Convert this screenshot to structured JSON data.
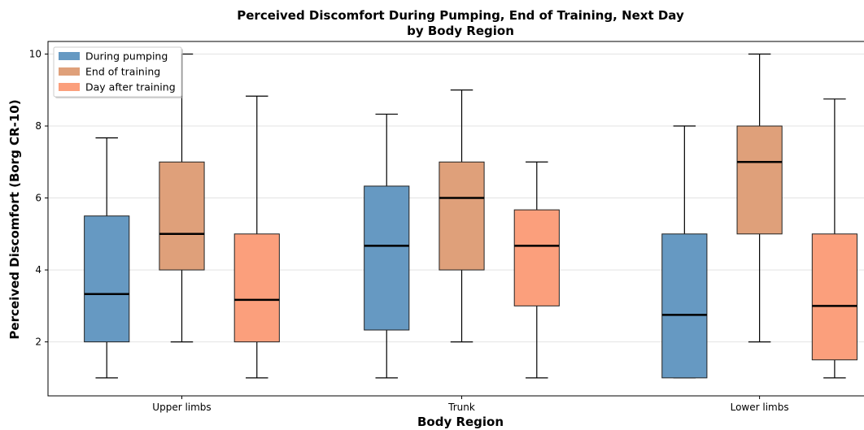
{
  "chart_data": {
    "type": "boxplot",
    "title_line1": "Perceived Discomfort During Pumping, End of Training, Next Day",
    "title_line2": "by Body Region",
    "xlabel": "Body Region",
    "ylabel": "Perceived Discomfort (Borg CR-10)",
    "categories": [
      "Upper limbs",
      "Trunk",
      "Lower limbs"
    ],
    "ylim": [
      0.5,
      10.35
    ],
    "yticks": [
      2,
      4,
      6,
      8,
      10
    ],
    "grid": "horizontal",
    "legend_position": "top-left",
    "series": [
      {
        "name": "During pumping",
        "color": "#6699c2",
        "boxes": [
          {
            "whislo": 1,
            "q1": 2,
            "med": 3.33,
            "q3": 5.5,
            "whishi": 7.67
          },
          {
            "whislo": 1,
            "q1": 2.33,
            "med": 4.67,
            "q3": 6.33,
            "whishi": 8.33
          },
          {
            "whislo": 1,
            "q1": 1,
            "med": 2.75,
            "q3": 5,
            "whishi": 8
          }
        ]
      },
      {
        "name": "End of training",
        "color": "#dfa07a",
        "boxes": [
          {
            "whislo": 2,
            "q1": 4,
            "med": 5,
            "q3": 7,
            "whishi": 10
          },
          {
            "whislo": 2,
            "q1": 4,
            "med": 6,
            "q3": 7,
            "whishi": 9
          },
          {
            "whislo": 2,
            "q1": 5,
            "med": 7,
            "q3": 8,
            "whishi": 10
          }
        ]
      },
      {
        "name": "Day after training",
        "color": "#fb9f7c",
        "boxes": [
          {
            "whislo": 1,
            "q1": 2,
            "med": 3.17,
            "q3": 5,
            "whishi": 8.83
          },
          {
            "whislo": 1,
            "q1": 3,
            "med": 4.67,
            "q3": 5.67,
            "whishi": 7
          },
          {
            "whislo": 1,
            "q1": 1.5,
            "med": 3,
            "q3": 5,
            "whishi": 8.75
          }
        ]
      }
    ]
  }
}
